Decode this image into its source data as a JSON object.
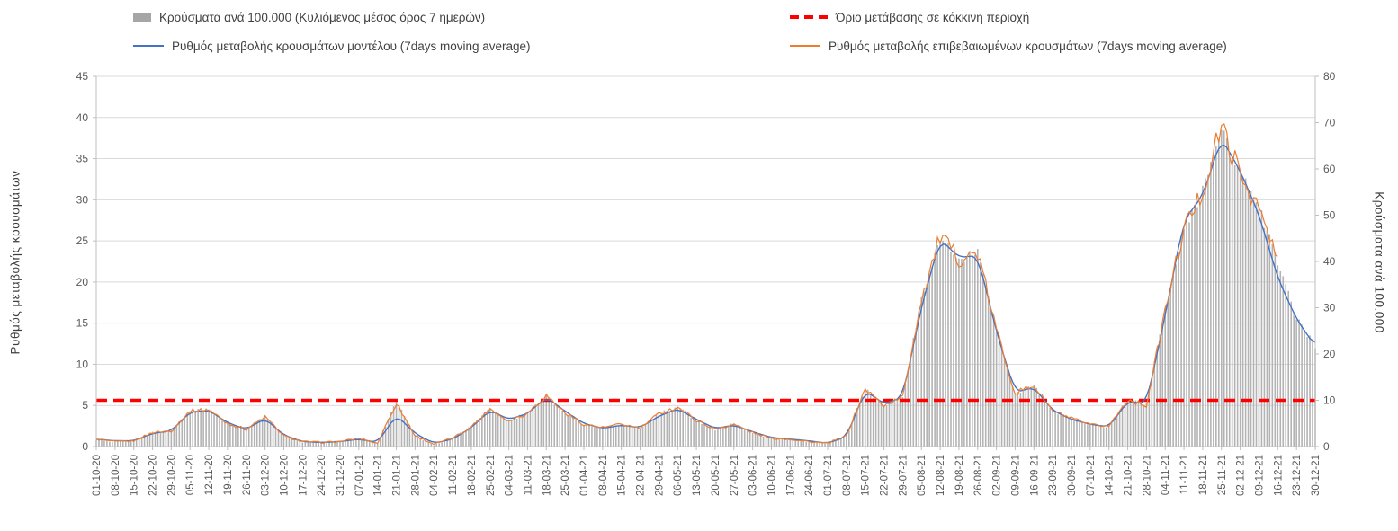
{
  "legend": {
    "bars": "Κρούσματα ανά 100.000 (Κυλιόμενος μέσος όρος 7 ημερών)",
    "threshold": "Όριο μετάβασης σε κόκκινη περιοχή",
    "model": "Ρυθμός μεταβολής κρουσμάτων μοντέλου (7days moving average)",
    "confirmed": "Ρυθμός μεταβολής επιβεβαιωμένων κρουσμάτων (7days moving average)"
  },
  "axes": {
    "left_title": "Ρυθμός μεταβολής κρουσμάτων",
    "right_title": "Κρούσματα ανά 100.000"
  },
  "colors": {
    "bars": "#b3b3b3",
    "model": "#4472c4",
    "confirmed": "#ed7d31",
    "threshold": "#ff0000",
    "grid": "#d9d9d9",
    "axis": "#bfbfbf"
  },
  "chart_data": {
    "type": "combo-bar-line",
    "title": "",
    "xlabel": "",
    "left_axis": {
      "label": "Ρυθμός μεταβολής κρουσμάτων",
      "min": 0,
      "max": 45,
      "ticks": [
        0,
        5,
        10,
        15,
        20,
        25,
        30,
        35,
        40,
        45
      ]
    },
    "right_axis": {
      "label": "Κρούσματα ανά 100.000",
      "min": 0,
      "max": 80,
      "ticks": [
        0,
        10,
        20,
        30,
        40,
        50,
        60,
        70,
        80
      ]
    },
    "threshold_right_axis": 10,
    "x_weekly": [
      "01-10-20",
      "08-10-20",
      "15-10-20",
      "22-10-20",
      "29-10-20",
      "05-11-20",
      "12-11-20",
      "19-11-20",
      "26-11-20",
      "03-12-20",
      "10-12-20",
      "17-12-20",
      "24-12-20",
      "31-12-20",
      "07-01-21",
      "14-01-21",
      "21-01-21",
      "28-01-21",
      "04-02-21",
      "11-02-21",
      "18-02-21",
      "25-02-21",
      "04-03-21",
      "11-03-21",
      "18-03-21",
      "25-03-21",
      "01-04-21",
      "08-04-21",
      "15-04-21",
      "22-04-21",
      "29-04-21",
      "06-05-21",
      "13-05-21",
      "20-05-21",
      "27-05-21",
      "03-06-21",
      "10-06-21",
      "17-06-21",
      "24-06-21",
      "01-07-21",
      "08-07-21",
      "15-07-21",
      "22-07-21",
      "29-07-21",
      "05-08-21",
      "12-08-21",
      "19-08-21",
      "26-08-21",
      "02-09-21",
      "09-09-21",
      "16-09-21",
      "23-09-21",
      "30-09-21",
      "07-10-21",
      "14-10-21",
      "21-10-21",
      "28-10-21",
      "04-11-21",
      "11-11-21",
      "18-11-21",
      "25-11-21",
      "02-12-21",
      "09-12-21",
      "16-12-21",
      "23-12-21",
      "30-12-21"
    ],
    "series": [
      {
        "name": "model",
        "axis": "left",
        "type": "line",
        "weekly_values": [
          0.9,
          0.7,
          0.7,
          1.6,
          1.9,
          4.2,
          4.4,
          2.9,
          2.1,
          3.4,
          1.4,
          0.6,
          0.5,
          0.6,
          0.9,
          0.5,
          3.8,
          1.6,
          0.4,
          0.9,
          2.3,
          4.4,
          3.3,
          4.0,
          6.0,
          4.3,
          2.8,
          2.2,
          2.6,
          2.3,
          3.7,
          4.6,
          3.3,
          2.2,
          2.6,
          1.8,
          1.1,
          0.9,
          0.7,
          0.4,
          1.2,
          6.8,
          5.2,
          6.0,
          17,
          25.2,
          23.0,
          23.2,
          14.0,
          6.6,
          7.2,
          4.4,
          3.3,
          2.7,
          2.4,
          5.5,
          5.2,
          16.0,
          27.5,
          30.5,
          37.5,
          33.5,
          28.2,
          20.5,
          15.5,
          12.2
        ]
      },
      {
        "name": "confirmed",
        "axis": "left",
        "type": "line",
        "weekly_values": [
          0.9,
          0.6,
          0.7,
          1.7,
          1.9,
          4.3,
          4.5,
          2.8,
          2.1,
          3.6,
          1.3,
          0.6,
          0.5,
          0.6,
          1.0,
          0.4,
          5.3,
          1.3,
          0.3,
          1.0,
          2.4,
          4.6,
          3.1,
          4.1,
          6.2,
          4.1,
          2.7,
          2.3,
          2.7,
          2.2,
          4.0,
          4.8,
          3.2,
          2.1,
          2.7,
          1.7,
          1.0,
          0.9,
          0.6,
          0.4,
          1.3,
          7.0,
          5.0,
          6.0,
          18,
          25.5,
          22.8,
          23.5,
          14.2,
          6.5,
          7.4,
          4.3,
          3.4,
          2.6,
          2.5,
          5.7,
          5.0,
          16.5,
          26.5,
          31,
          39,
          33,
          29,
          22.5,
          null,
          null
        ]
      },
      {
        "name": "cases_per_100k",
        "axis": "right",
        "type": "bar",
        "weekly_values": [
          1.6,
          1.1,
          1.2,
          3.0,
          3.4,
          7.7,
          8.0,
          5.0,
          3.7,
          6.4,
          2.3,
          1.1,
          0.9,
          1.1,
          1.8,
          0.7,
          9.9,
          2.3,
          0.5,
          1.8,
          4.3,
          8.2,
          5.5,
          7.3,
          11.0,
          7.3,
          4.8,
          4.1,
          4.8,
          3.9,
          7.1,
          8.5,
          5.7,
          3.7,
          4.8,
          3.0,
          1.8,
          1.6,
          1.1,
          0.7,
          2.3,
          12.4,
          8.9,
          10.7,
          32,
          45.3,
          40.5,
          41.8,
          25.2,
          11.6,
          13.2,
          7.6,
          6.0,
          4.6,
          4.4,
          10.1,
          9.3,
          29.3,
          47.1,
          55.1,
          69.3,
          58.7,
          51.6,
          40.0,
          27.6,
          21.7
        ]
      }
    ]
  }
}
